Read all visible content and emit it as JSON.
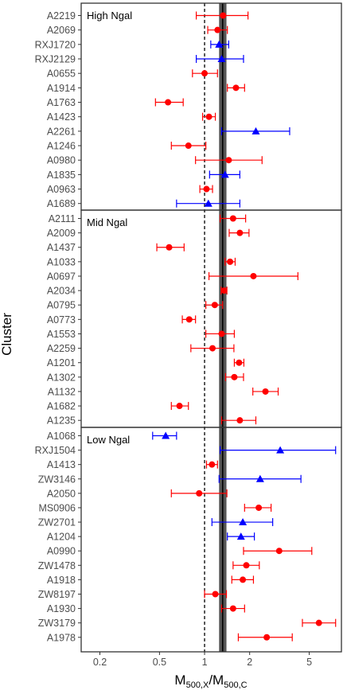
{
  "chart_data": {
    "type": "scatter",
    "xlabel": {
      "main": "M",
      "sub1": "500,X",
      "slash": "/M",
      "sub2": "500,C"
    },
    "ylabel": "Cluster",
    "x_scale": "log",
    "xlim": [
      0.15,
      8.2
    ],
    "x_ticks": [
      {
        "value": 0.2,
        "label": "0.2"
      },
      {
        "value": 0.5,
        "label": "0.5"
      },
      {
        "value": 1,
        "label": "1"
      },
      {
        "value": 2,
        "label": "2"
      },
      {
        "value": 5,
        "label": "5"
      }
    ],
    "reference_line": {
      "value": 1,
      "style": "dashed"
    },
    "band": {
      "low": 1.25,
      "high": 1.4,
      "center": 1.32,
      "color": "#555555"
    },
    "colors": {
      "circle": "#ff0000",
      "triangle": "#0000ff"
    },
    "panels": [
      {
        "label": "High Ngal",
        "clusters": [
          {
            "name": "A2219",
            "marker": "circle",
            "value": 1.33,
            "lo": 0.88,
            "hi": 1.95
          },
          {
            "name": "A2069",
            "marker": "circle",
            "value": 1.22,
            "lo": 1.05,
            "hi": 1.42
          },
          {
            "name": "RXJ1720",
            "marker": "triangle",
            "value": 1.25,
            "lo": 1.1,
            "hi": 1.45
          },
          {
            "name": "RXJ2129",
            "marker": "triangle",
            "value": 1.3,
            "lo": 0.88,
            "hi": 1.82
          },
          {
            "name": "A0655",
            "marker": "circle",
            "value": 1.0,
            "lo": 0.83,
            "hi": 1.22
          },
          {
            "name": "A1914",
            "marker": "circle",
            "value": 1.62,
            "lo": 1.42,
            "hi": 1.85
          },
          {
            "name": "A1763",
            "marker": "circle",
            "value": 0.57,
            "lo": 0.47,
            "hi": 0.72
          },
          {
            "name": "A1423",
            "marker": "circle",
            "value": 1.07,
            "lo": 0.97,
            "hi": 1.18
          },
          {
            "name": "A2261",
            "marker": "triangle",
            "value": 2.2,
            "lo": 1.3,
            "hi": 3.7
          },
          {
            "name": "A1246",
            "marker": "circle",
            "value": 0.78,
            "lo": 0.6,
            "hi": 1.02
          },
          {
            "name": "A0980",
            "marker": "circle",
            "value": 1.45,
            "lo": 0.87,
            "hi": 2.42
          },
          {
            "name": "A1835",
            "marker": "triangle",
            "value": 1.37,
            "lo": 1.08,
            "hi": 1.72
          },
          {
            "name": "A0963",
            "marker": "circle",
            "value": 1.03,
            "lo": 0.93,
            "hi": 1.13
          },
          {
            "name": "A1689",
            "marker": "triangle",
            "value": 1.06,
            "lo": 0.65,
            "hi": 1.72
          }
        ]
      },
      {
        "label": "Mid Ngal",
        "clusters": [
          {
            "name": "A2111",
            "marker": "circle",
            "value": 1.55,
            "lo": 1.27,
            "hi": 1.88
          },
          {
            "name": "A2009",
            "marker": "circle",
            "value": 1.72,
            "lo": 1.46,
            "hi": 1.98
          },
          {
            "name": "A1437",
            "marker": "circle",
            "value": 0.58,
            "lo": 0.48,
            "hi": 0.73
          },
          {
            "name": "A1033",
            "marker": "circle",
            "value": 1.48,
            "lo": 1.37,
            "hi": 1.6
          },
          {
            "name": "A0697",
            "marker": "circle",
            "value": 2.12,
            "lo": 1.07,
            "hi": 4.2
          },
          {
            "name": "A2034",
            "marker": "circle",
            "value": 1.35,
            "lo": 1.29,
            "hi": 1.41
          },
          {
            "name": "A0795",
            "marker": "circle",
            "value": 1.17,
            "lo": 1.02,
            "hi": 1.32
          },
          {
            "name": "A0773",
            "marker": "circle",
            "value": 0.79,
            "lo": 0.71,
            "hi": 0.87
          },
          {
            "name": "A1553",
            "marker": "circle",
            "value": 1.3,
            "lo": 1.02,
            "hi": 1.58
          },
          {
            "name": "A2259",
            "marker": "circle",
            "value": 1.13,
            "lo": 0.81,
            "hi": 1.57
          },
          {
            "name": "A1201",
            "marker": "circle",
            "value": 1.7,
            "lo": 1.58,
            "hi": 1.83
          },
          {
            "name": "A1302",
            "marker": "circle",
            "value": 1.58,
            "lo": 1.38,
            "hi": 1.82
          },
          {
            "name": "A1132",
            "marker": "circle",
            "value": 2.55,
            "lo": 2.1,
            "hi": 3.1
          },
          {
            "name": "A1682",
            "marker": "circle",
            "value": 0.68,
            "lo": 0.6,
            "hi": 0.78
          },
          {
            "name": "A1235",
            "marker": "circle",
            "value": 1.72,
            "lo": 1.3,
            "hi": 2.2
          }
        ]
      },
      {
        "label": "Low Ngal",
        "clusters": [
          {
            "name": "A1068",
            "marker": "triangle",
            "value": 0.55,
            "lo": 0.45,
            "hi": 0.65
          },
          {
            "name": "RXJ1504",
            "marker": "triangle",
            "value": 3.2,
            "lo": 1.27,
            "hi": 7.5
          },
          {
            "name": "A1413",
            "marker": "circle",
            "value": 1.12,
            "lo": 1.03,
            "hi": 1.22
          },
          {
            "name": "ZW3146",
            "marker": "triangle",
            "value": 2.35,
            "lo": 1.25,
            "hi": 4.4
          },
          {
            "name": "A2050",
            "marker": "circle",
            "value": 0.92,
            "lo": 0.6,
            "hi": 1.41
          },
          {
            "name": "MS0906",
            "marker": "circle",
            "value": 2.3,
            "lo": 1.85,
            "hi": 2.78
          },
          {
            "name": "ZW2701",
            "marker": "triangle",
            "value": 1.8,
            "lo": 1.12,
            "hi": 2.85
          },
          {
            "name": "A1204",
            "marker": "triangle",
            "value": 1.75,
            "lo": 1.42,
            "hi": 2.15
          },
          {
            "name": "A0990",
            "marker": "circle",
            "value": 3.15,
            "lo": 1.82,
            "hi": 5.2
          },
          {
            "name": "ZW1478",
            "marker": "circle",
            "value": 1.9,
            "lo": 1.55,
            "hi": 2.32
          },
          {
            "name": "A1918",
            "marker": "circle",
            "value": 1.8,
            "lo": 1.52,
            "hi": 2.12
          },
          {
            "name": "ZW8197",
            "marker": "circle",
            "value": 1.18,
            "lo": 1.0,
            "hi": 1.4
          },
          {
            "name": "A1930",
            "marker": "circle",
            "value": 1.55,
            "lo": 1.3,
            "hi": 1.85
          },
          {
            "name": "ZW3179",
            "marker": "circle",
            "value": 5.8,
            "lo": 4.5,
            "hi": 7.5
          },
          {
            "name": "A1978",
            "marker": "circle",
            "value": 2.6,
            "lo": 1.68,
            "hi": 3.85
          }
        ]
      }
    ]
  }
}
